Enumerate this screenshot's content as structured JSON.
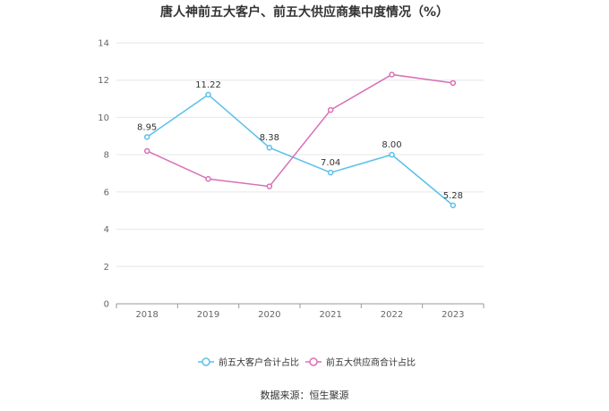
{
  "chart_data": {
    "type": "line",
    "title": "唐人神前五大客户、前五大供应商集中度情况（%）",
    "categories": [
      "2018",
      "2019",
      "2020",
      "2021",
      "2022",
      "2023"
    ],
    "ylim": [
      0,
      14
    ],
    "yticks": [
      0,
      2,
      4,
      6,
      8,
      10,
      12,
      14
    ],
    "grid": true,
    "legend_position": "bottom",
    "series": [
      {
        "name": "前五大客户合计占比",
        "color": "#5bc0eb",
        "values": [
          8.95,
          11.22,
          8.38,
          7.04,
          8.0,
          5.28
        ],
        "labels": [
          "8.95",
          "11.22",
          "8.38",
          "7.04",
          "8.00",
          "5.28"
        ]
      },
      {
        "name": "前五大供应商合计占比",
        "color": "#d870b6",
        "values": [
          8.2,
          6.7,
          6.3,
          10.4,
          12.3,
          11.85
        ],
        "labels": null
      }
    ],
    "source": "数据来源：恒生聚源"
  }
}
